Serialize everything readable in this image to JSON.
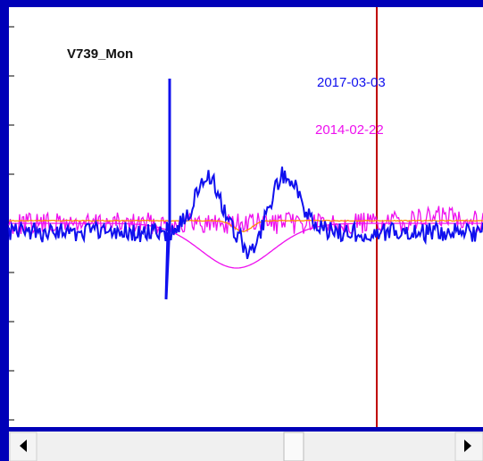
{
  "plot": {
    "object_label": "V739_Mon",
    "spectra": [
      {
        "date": "2017-03-03",
        "color": "#1010ee"
      },
      {
        "date": "2014-02-22",
        "color": "#ee10ee"
      }
    ]
  }
}
